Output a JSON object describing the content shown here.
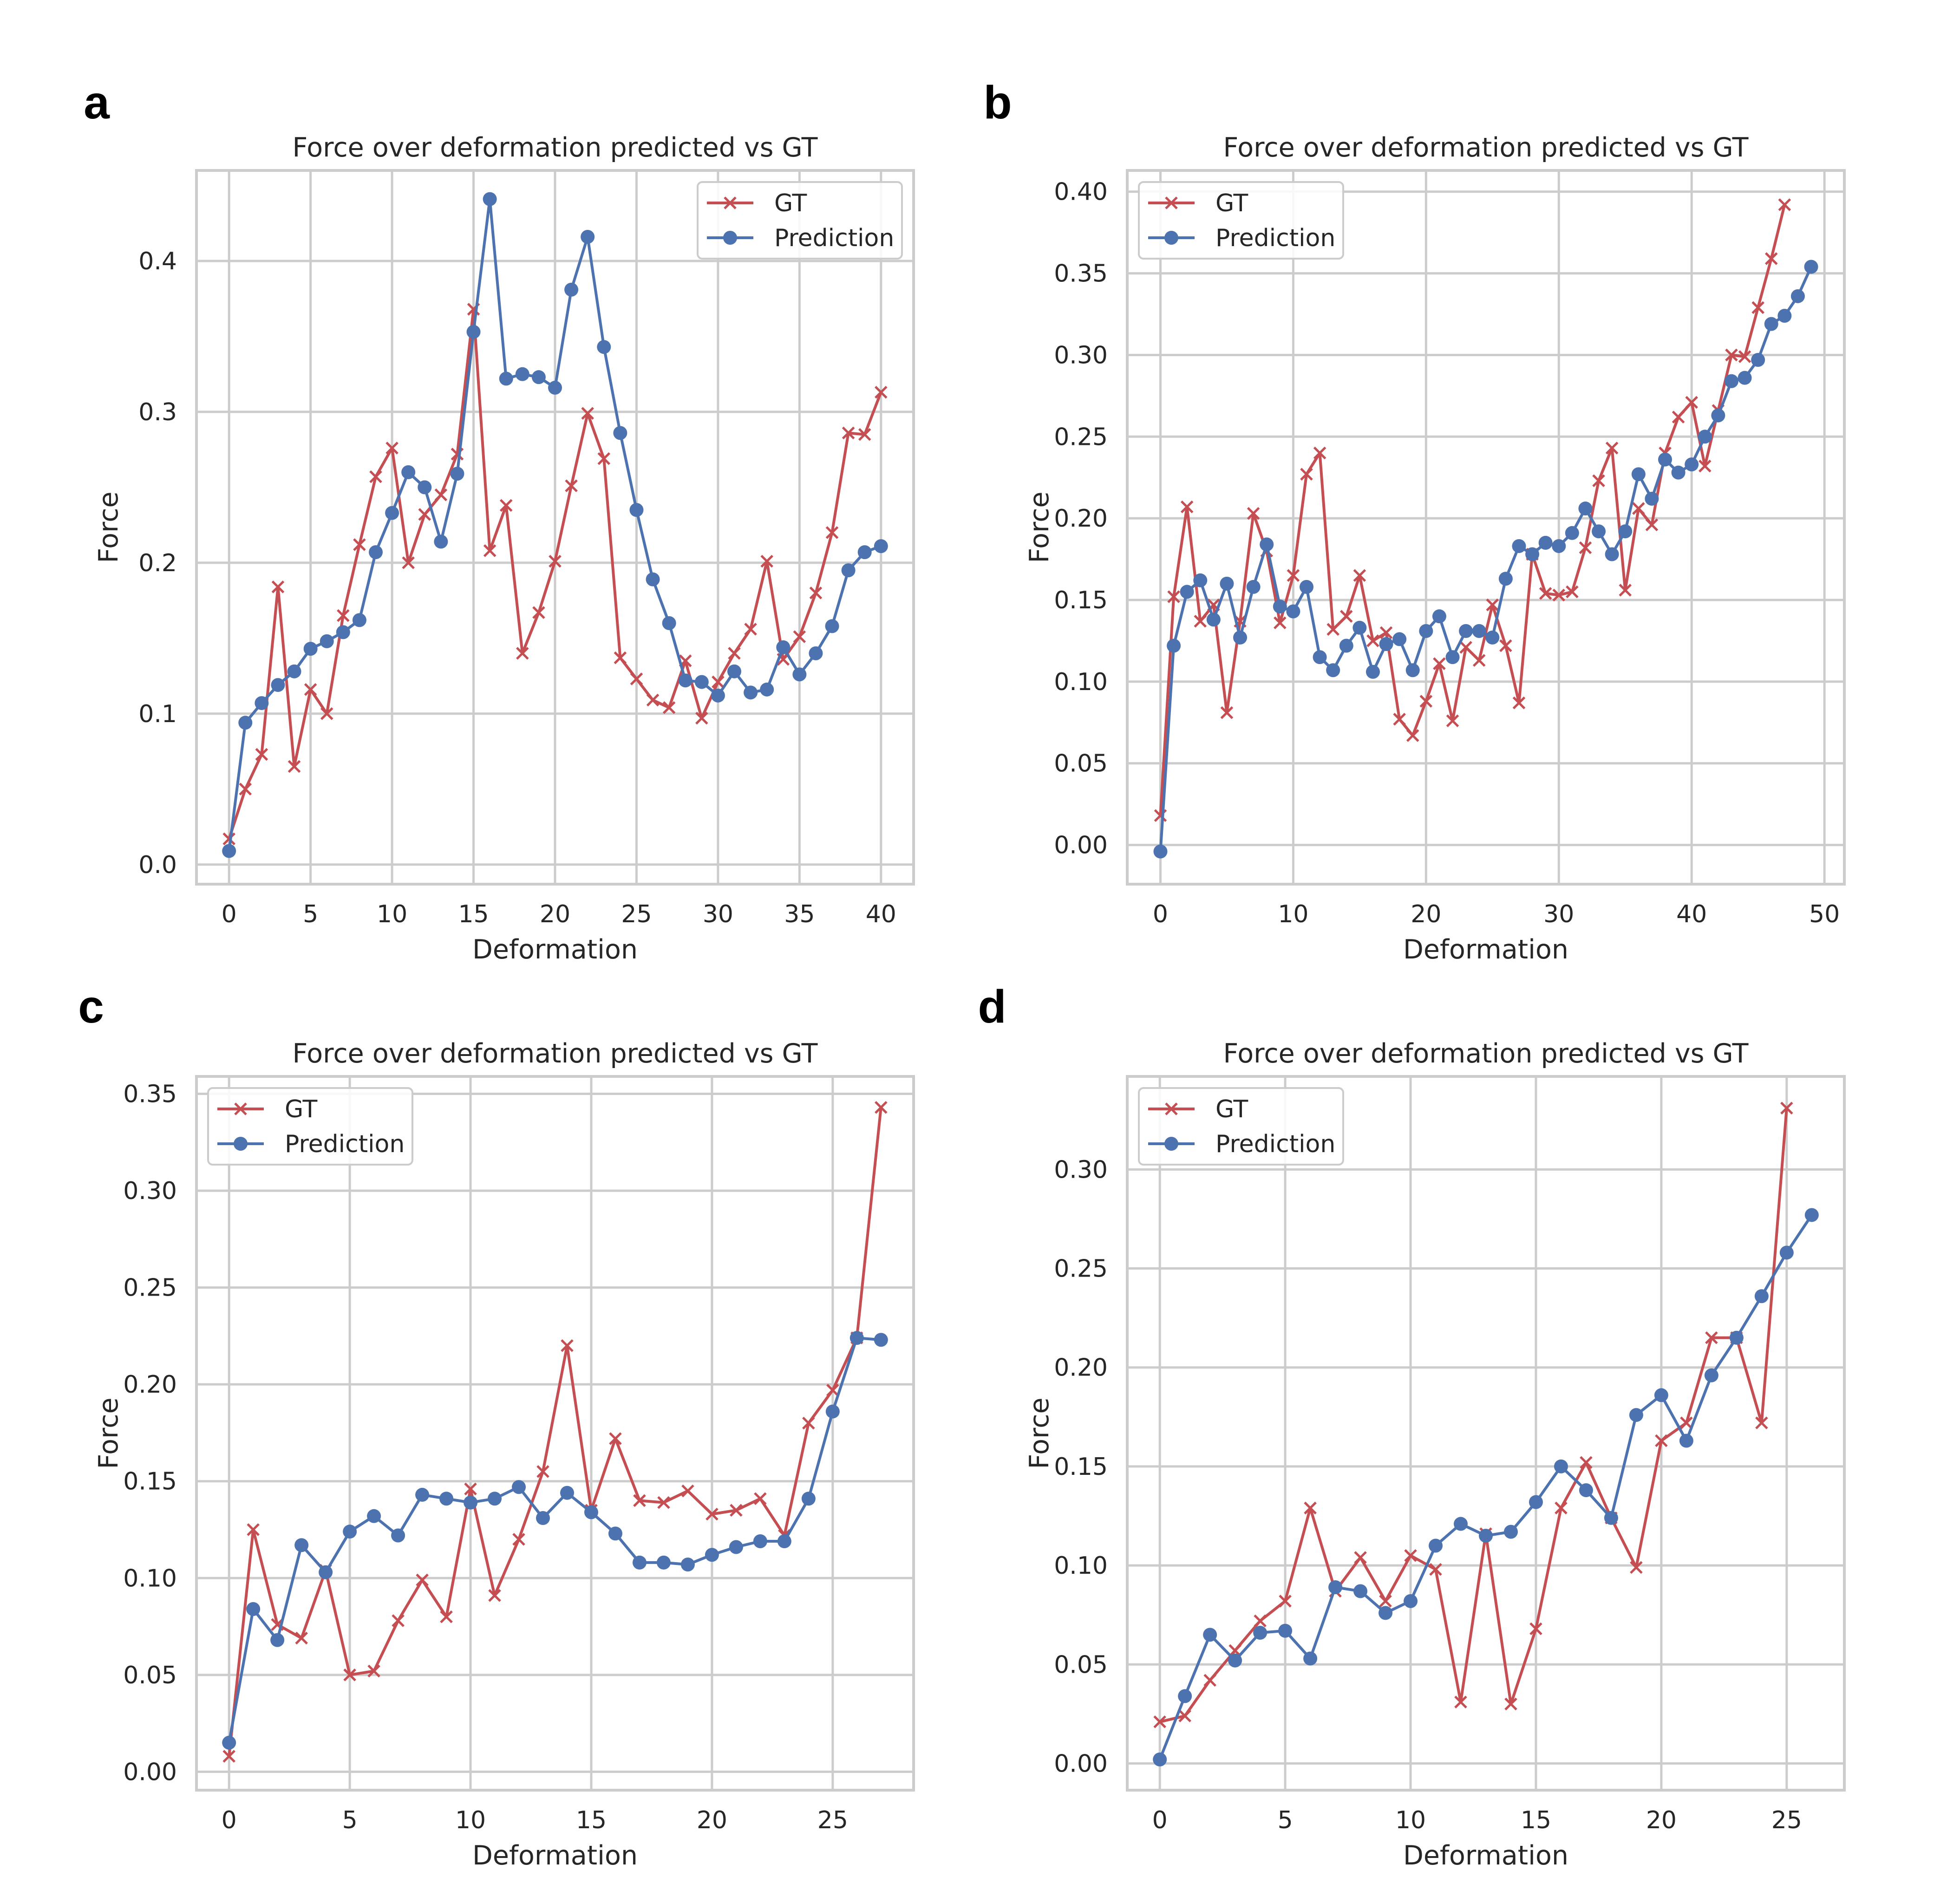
{
  "figure": {
    "colors": {
      "gt": "#c44e52",
      "prediction": "#4c72b0",
      "grid": "#cccccc",
      "text": "#262626"
    }
  },
  "chart_data": [
    {
      "panel_label": "a",
      "type": "line",
      "title": "Force over deformation predicted vs GT",
      "xlabel": "Deformation",
      "ylabel": "Force",
      "xlim": [
        -2,
        42
      ],
      "ylim": [
        -0.013,
        0.46
      ],
      "xticks": [
        0,
        5,
        10,
        15,
        20,
        25,
        30,
        35,
        40
      ],
      "yticks": [
        0.0,
        0.1,
        0.2,
        0.3,
        0.4
      ],
      "ytick_labels": [
        "0.0",
        "0.1",
        "0.2",
        "0.3",
        "0.4"
      ],
      "grid": true,
      "legend_position": "upper right",
      "series": [
        {
          "name": "GT",
          "marker": "x",
          "color": "#c44e52",
          "x": [
            0,
            1,
            2,
            3,
            4,
            5,
            6,
            7,
            8,
            9,
            10,
            11,
            12,
            13,
            14,
            15,
            16,
            17,
            18,
            19,
            20,
            21,
            22,
            23,
            24,
            25,
            26,
            27,
            28,
            29,
            30,
            31,
            32,
            33,
            34,
            35,
            36,
            37,
            38,
            39,
            40
          ],
          "y": [
            0.017,
            0.05,
            0.073,
            0.184,
            0.065,
            0.116,
            0.1,
            0.165,
            0.212,
            0.257,
            0.276,
            0.2,
            0.232,
            0.245,
            0.272,
            0.368,
            0.208,
            0.238,
            0.14,
            0.167,
            0.201,
            0.251,
            0.299,
            0.269,
            0.137,
            0.123,
            0.109,
            0.104,
            0.135,
            0.097,
            0.121,
            0.14,
            0.156,
            0.201,
            0.136,
            0.151,
            0.18,
            0.22,
            0.286,
            0.285,
            0.313
          ]
        },
        {
          "name": "Prediction",
          "marker": "o",
          "color": "#4c72b0",
          "x": [
            0,
            1,
            2,
            3,
            4,
            5,
            6,
            7,
            8,
            9,
            10,
            11,
            12,
            13,
            14,
            15,
            16,
            17,
            18,
            19,
            20,
            21,
            22,
            23,
            24,
            25,
            26,
            27,
            28,
            29,
            30,
            31,
            32,
            33,
            34,
            35,
            36,
            37,
            38,
            39,
            40
          ],
          "y": [
            0.009,
            0.094,
            0.107,
            0.119,
            0.128,
            0.143,
            0.148,
            0.154,
            0.162,
            0.207,
            0.233,
            0.26,
            0.25,
            0.214,
            0.259,
            0.353,
            0.441,
            0.322,
            0.325,
            0.323,
            0.316,
            0.381,
            0.416,
            0.343,
            0.286,
            0.235,
            0.189,
            0.16,
            0.122,
            0.121,
            0.112,
            0.128,
            0.114,
            0.116,
            0.144,
            0.126,
            0.14,
            0.158,
            0.195,
            0.207,
            0.211
          ]
        }
      ]
    },
    {
      "panel_label": "b",
      "type": "line",
      "title": "Force over deformation predicted vs GT",
      "xlabel": "Deformation",
      "ylabel": "Force",
      "xlim": [
        -2.5,
        51.5
      ],
      "ylim": [
        -0.024,
        0.413
      ],
      "xticks": [
        0,
        10,
        20,
        30,
        40,
        50
      ],
      "yticks": [
        0.0,
        0.05,
        0.1,
        0.15,
        0.2,
        0.25,
        0.3,
        0.35,
        0.4
      ],
      "ytick_labels": [
        "0.00",
        "0.05",
        "0.10",
        "0.15",
        "0.20",
        "0.25",
        "0.30",
        "0.35",
        "0.40"
      ],
      "grid": true,
      "legend_position": "upper left",
      "series": [
        {
          "name": "GT",
          "marker": "x",
          "color": "#c44e52",
          "x": [
            0,
            1,
            2,
            3,
            4,
            5,
            6,
            7,
            8,
            9,
            10,
            11,
            12,
            13,
            14,
            15,
            16,
            17,
            18,
            19,
            20,
            21,
            22,
            23,
            24,
            25,
            26,
            27,
            28,
            29,
            30,
            31,
            32,
            33,
            34,
            35,
            36,
            37,
            38,
            39,
            40,
            41,
            42,
            43,
            44,
            45,
            46,
            47
          ],
          "y": [
            0.018,
            0.152,
            0.207,
            0.137,
            0.147,
            0.081,
            0.137,
            0.203,
            0.18,
            0.136,
            0.165,
            0.227,
            0.24,
            0.132,
            0.14,
            0.165,
            0.125,
            0.13,
            0.077,
            0.067,
            0.088,
            0.111,
            0.076,
            0.121,
            0.113,
            0.147,
            0.122,
            0.087,
            0.178,
            0.154,
            0.153,
            0.155,
            0.182,
            0.223,
            0.243,
            0.156,
            0.206,
            0.196,
            0.24,
            0.262,
            0.271,
            0.232,
            0.266,
            0.3,
            0.299,
            0.329,
            0.359,
            0.392
          ]
        },
        {
          "name": "Prediction",
          "marker": "o",
          "color": "#4c72b0",
          "x": [
            0,
            1,
            2,
            3,
            4,
            5,
            6,
            7,
            8,
            9,
            10,
            11,
            12,
            13,
            14,
            15,
            16,
            17,
            18,
            19,
            20,
            21,
            22,
            23,
            24,
            25,
            26,
            27,
            28,
            29,
            30,
            31,
            32,
            33,
            34,
            35,
            36,
            37,
            38,
            39,
            40,
            41,
            42,
            43,
            44,
            45,
            46,
            47,
            48,
            49
          ],
          "y": [
            -0.004,
            0.122,
            0.155,
            0.162,
            0.138,
            0.16,
            0.127,
            0.158,
            0.184,
            0.146,
            0.143,
            0.158,
            0.115,
            0.107,
            0.122,
            0.133,
            0.106,
            0.123,
            0.126,
            0.107,
            0.131,
            0.14,
            0.115,
            0.131,
            0.131,
            0.127,
            0.163,
            0.183,
            0.178,
            0.185,
            0.183,
            0.191,
            0.206,
            0.192,
            0.178,
            0.192,
            0.227,
            0.212,
            0.236,
            0.228,
            0.233,
            0.25,
            0.263,
            0.284,
            0.286,
            0.297,
            0.319,
            0.324,
            0.336,
            0.354
          ]
        }
      ]
    },
    {
      "panel_label": "c",
      "type": "line",
      "title": "Force over deformation predicted vs GT",
      "xlabel": "Deformation",
      "ylabel": "Force",
      "xlim": [
        -1.35,
        28.35
      ],
      "ylim": [
        -0.0095,
        0.359
      ],
      "xticks": [
        0,
        5,
        10,
        15,
        20,
        25
      ],
      "yticks": [
        0.0,
        0.05,
        0.1,
        0.15,
        0.2,
        0.25,
        0.3,
        0.35
      ],
      "ytick_labels": [
        "0.00",
        "0.05",
        "0.10",
        "0.15",
        "0.20",
        "0.25",
        "0.30",
        "0.35"
      ],
      "grid": true,
      "legend_position": "upper left",
      "series": [
        {
          "name": "GT",
          "marker": "x",
          "color": "#c44e52",
          "x": [
            0,
            1,
            2,
            3,
            4,
            5,
            6,
            7,
            8,
            9,
            10,
            11,
            12,
            13,
            14,
            15,
            16,
            17,
            18,
            19,
            20,
            21,
            22,
            23,
            24,
            25,
            26,
            27
          ],
          "y": [
            0.008,
            0.125,
            0.076,
            0.069,
            0.104,
            0.05,
            0.052,
            0.078,
            0.099,
            0.08,
            0.146,
            0.091,
            0.12,
            0.155,
            0.22,
            0.135,
            0.172,
            0.14,
            0.139,
            0.145,
            0.133,
            0.135,
            0.141,
            0.122,
            0.18,
            0.197,
            0.224,
            0.343
          ]
        },
        {
          "name": "Prediction",
          "marker": "o",
          "color": "#4c72b0",
          "x": [
            0,
            1,
            2,
            3,
            4,
            5,
            6,
            7,
            8,
            9,
            10,
            11,
            12,
            13,
            14,
            15,
            16,
            17,
            18,
            19,
            20,
            21,
            22,
            23,
            24,
            25,
            26,
            27
          ],
          "y": [
            0.015,
            0.084,
            0.068,
            0.117,
            0.103,
            0.124,
            0.132,
            0.122,
            0.143,
            0.141,
            0.139,
            0.141,
            0.147,
            0.131,
            0.144,
            0.134,
            0.123,
            0.108,
            0.108,
            0.107,
            0.112,
            0.116,
            0.119,
            0.119,
            0.141,
            0.186,
            0.224,
            0.223
          ]
        }
      ]
    },
    {
      "panel_label": "d",
      "type": "line",
      "title": "Force over deformation predicted vs GT",
      "xlabel": "Deformation",
      "ylabel": "Force",
      "xlim": [
        -1.3,
        27.3
      ],
      "ylim": [
        -0.0135,
        0.347
      ],
      "xticks": [
        0,
        5,
        10,
        15,
        20,
        25
      ],
      "yticks": [
        0.0,
        0.05,
        0.1,
        0.15,
        0.2,
        0.25,
        0.3
      ],
      "ytick_labels": [
        "0.00",
        "0.05",
        "0.10",
        "0.15",
        "0.20",
        "0.25",
        "0.30"
      ],
      "grid": true,
      "legend_position": "upper left",
      "series": [
        {
          "name": "GT",
          "marker": "x",
          "color": "#c44e52",
          "x": [
            0,
            1,
            2,
            3,
            4,
            5,
            6,
            7,
            8,
            9,
            10,
            11,
            12,
            13,
            14,
            15,
            16,
            17,
            18,
            19,
            20,
            21,
            22,
            23,
            24,
            25
          ],
          "y": [
            0.021,
            0.024,
            0.042,
            0.057,
            0.072,
            0.082,
            0.129,
            0.087,
            0.104,
            0.082,
            0.105,
            0.098,
            0.031,
            0.116,
            0.03,
            0.068,
            0.129,
            0.152,
            0.124,
            0.099,
            0.163,
            0.172,
            0.215,
            0.215,
            0.172,
            0.331
          ]
        },
        {
          "name": "Prediction",
          "marker": "o",
          "color": "#4c72b0",
          "x": [
            0,
            1,
            2,
            3,
            4,
            5,
            6,
            7,
            8,
            9,
            10,
            11,
            12,
            13,
            14,
            15,
            16,
            17,
            18,
            19,
            20,
            21,
            22,
            23,
            24,
            25,
            26
          ],
          "y": [
            0.002,
            0.034,
            0.065,
            0.052,
            0.066,
            0.067,
            0.053,
            0.089,
            0.087,
            0.076,
            0.082,
            0.11,
            0.121,
            0.115,
            0.117,
            0.132,
            0.15,
            0.138,
            0.124,
            0.176,
            0.186,
            0.163,
            0.196,
            0.215,
            0.236,
            0.258,
            0.277
          ]
        }
      ]
    }
  ]
}
